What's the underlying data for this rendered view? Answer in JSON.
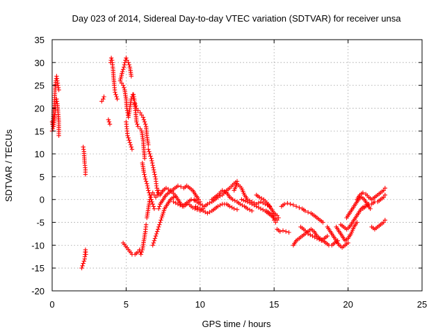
{
  "chart_data": {
    "type": "scatter",
    "title": "Day 023 of 2014, Sidereal Day-to-day VTEC variation (SDTVAR) for receiver unsa",
    "xlabel": "GPS time / hours",
    "ylabel": "SDTVAR / TECUs",
    "xlim": [
      0,
      25
    ],
    "ylim": [
      -20,
      35
    ],
    "xticks": [
      0,
      5,
      10,
      15,
      20,
      25
    ],
    "yticks": [
      -20,
      -15,
      -10,
      -5,
      0,
      5,
      10,
      15,
      20,
      25,
      30,
      35
    ],
    "grid": true,
    "marker": "+",
    "color": "#ff0000",
    "segments": [
      [
        [
          0,
          17
        ],
        [
          0.05,
          16
        ],
        [
          0.1,
          19
        ],
        [
          0.15,
          21
        ],
        [
          0.2,
          24
        ],
        [
          0.25,
          26
        ],
        [
          0.3,
          27
        ],
        [
          0.35,
          26
        ],
        [
          0.4,
          25
        ],
        [
          0.45,
          24
        ]
      ],
      [
        [
          0,
          15
        ],
        [
          0.1,
          16
        ],
        [
          0.15,
          18
        ],
        [
          0.2,
          19
        ],
        [
          0.25,
          21
        ],
        [
          0.3,
          22
        ],
        [
          0.35,
          21
        ],
        [
          0.4,
          19
        ],
        [
          0.45,
          17
        ],
        [
          0.45,
          14
        ]
      ],
      [
        [
          2.1,
          11.5
        ],
        [
          2.15,
          10.5
        ],
        [
          2.2,
          8
        ],
        [
          2.25,
          6.5
        ],
        [
          2.25,
          5.5
        ]
      ],
      [
        [
          2,
          -15
        ],
        [
          2.05,
          -14.5
        ],
        [
          2.1,
          -14
        ],
        [
          2.15,
          -13.5
        ],
        [
          2.2,
          -13
        ],
        [
          2.22,
          -12
        ],
        [
          2.25,
          -11
        ],
        [
          2.28,
          -12
        ]
      ],
      [
        [
          3.35,
          21.5
        ],
        [
          3.45,
          22
        ],
        [
          3.5,
          22.5
        ]
      ],
      [
        [
          3.8,
          17.5
        ],
        [
          3.85,
          17
        ],
        [
          3.9,
          16.5
        ]
      ],
      [
        [
          3.95,
          30
        ],
        [
          4.0,
          31
        ],
        [
          4.05,
          30.5
        ],
        [
          4.1,
          29
        ],
        [
          4.15,
          27
        ],
        [
          4.2,
          25
        ],
        [
          4.25,
          23.5
        ],
        [
          4.3,
          23
        ],
        [
          4.4,
          22
        ]
      ],
      [
        [
          4.6,
          26
        ],
        [
          4.75,
          28
        ],
        [
          4.85,
          29
        ],
        [
          4.95,
          30.5
        ],
        [
          5.0,
          31
        ],
        [
          5.05,
          30.5
        ],
        [
          5.15,
          30
        ],
        [
          5.25,
          29
        ],
        [
          5.35,
          27
        ]
      ],
      [
        [
          4.7,
          25.5
        ],
        [
          4.8,
          25
        ],
        [
          4.9,
          24
        ],
        [
          5.0,
          22
        ],
        [
          5.05,
          20
        ],
        [
          5.1,
          19
        ],
        [
          5.15,
          18
        ],
        [
          5.25,
          20
        ],
        [
          5.35,
          22
        ],
        [
          5.45,
          23
        ],
        [
          5.5,
          22
        ]
      ],
      [
        [
          5.5,
          23
        ],
        [
          5.55,
          22
        ],
        [
          5.6,
          20
        ],
        [
          5.65,
          19
        ],
        [
          5.7,
          17
        ],
        [
          5.8,
          16
        ],
        [
          5.95,
          15.5
        ],
        [
          6.05,
          15
        ],
        [
          6.15,
          13
        ],
        [
          6.2,
          11
        ],
        [
          6.25,
          9
        ]
      ],
      [
        [
          5.6,
          21
        ],
        [
          5.7,
          20
        ],
        [
          5.8,
          19.5
        ],
        [
          5.95,
          19
        ],
        [
          6.05,
          18.5
        ],
        [
          6.15,
          18
        ],
        [
          6.25,
          17
        ],
        [
          6.35,
          16
        ],
        [
          6.4,
          14
        ],
        [
          6.5,
          12
        ]
      ],
      [
        [
          5.0,
          17
        ],
        [
          5.05,
          15.5
        ],
        [
          5.1,
          14
        ],
        [
          5.2,
          13
        ],
        [
          5.3,
          12
        ],
        [
          5.4,
          11
        ]
      ],
      [
        [
          6.5,
          11
        ],
        [
          6.6,
          10
        ],
        [
          6.7,
          9
        ],
        [
          6.8,
          7.5
        ],
        [
          6.9,
          6
        ],
        [
          7.0,
          4.5
        ],
        [
          7.05,
          3
        ],
        [
          7.1,
          2
        ],
        [
          7.15,
          1.5
        ],
        [
          7.2,
          1
        ]
      ],
      [
        [
          6.1,
          8
        ],
        [
          6.2,
          6
        ],
        [
          6.3,
          4.5
        ],
        [
          6.4,
          3.5
        ],
        [
          6.5,
          2
        ],
        [
          6.6,
          1
        ],
        [
          6.7,
          0
        ],
        [
          6.8,
          -1
        ],
        [
          6.9,
          -2
        ]
      ],
      [
        [
          4.8,
          -9.5
        ],
        [
          5.4,
          -12
        ],
        [
          5.6,
          -12
        ],
        [
          5.8,
          -11.5
        ],
        [
          5.9,
          -11
        ],
        [
          6.0,
          -12
        ],
        [
          6.1,
          -11
        ],
        [
          6.2,
          -9
        ],
        [
          6.3,
          -7
        ],
        [
          6.35,
          -5.5
        ]
      ],
      [
        [
          6.4,
          -4
        ],
        [
          6.5,
          -2
        ],
        [
          6.6,
          0
        ],
        [
          6.7,
          1
        ],
        [
          6.8,
          1.5
        ],
        [
          6.9,
          1
        ],
        [
          7.0,
          0.5
        ],
        [
          7.1,
          1
        ],
        [
          7.2,
          2
        ]
      ],
      [
        [
          6.8,
          -10
        ],
        [
          6.9,
          -9
        ],
        [
          7.0,
          -8
        ],
        [
          7.1,
          -7
        ],
        [
          7.2,
          -6
        ],
        [
          7.3,
          -5
        ],
        [
          7.4,
          -4
        ],
        [
          7.6,
          -2
        ],
        [
          7.8,
          -1
        ],
        [
          8.0,
          0
        ],
        [
          8.2,
          0.5
        ]
      ],
      [
        [
          7.2,
          -2
        ],
        [
          7.3,
          -1
        ],
        [
          7.5,
          0
        ],
        [
          7.7,
          1
        ],
        [
          7.9,
          1.5
        ],
        [
          8.1,
          2
        ],
        [
          8.3,
          2.5
        ],
        [
          8.5,
          3
        ],
        [
          8.7,
          2.8
        ],
        [
          8.9,
          2.5
        ],
        [
          9.1,
          3
        ],
        [
          9.3,
          2.5
        ],
        [
          9.5,
          2
        ],
        [
          9.7,
          1
        ],
        [
          9.9,
          0
        ]
      ],
      [
        [
          7.3,
          1
        ],
        [
          7.5,
          2
        ],
        [
          7.7,
          2.5
        ],
        [
          8.0,
          2
        ],
        [
          8.3,
          1
        ],
        [
          8.5,
          0
        ],
        [
          8.7,
          -1
        ],
        [
          8.9,
          -1.5
        ],
        [
          9.1,
          -1
        ],
        [
          9.3,
          -1.2
        ],
        [
          9.5,
          -1.8
        ],
        [
          9.8,
          -2.2
        ],
        [
          10.0,
          -2.5
        ],
        [
          10.2,
          -2
        ]
      ],
      [
        [
          8.2,
          -0.5
        ],
        [
          8.5,
          -1
        ],
        [
          8.8,
          -1.5
        ],
        [
          9.0,
          -1
        ],
        [
          9.2,
          -0.5
        ],
        [
          9.4,
          0
        ],
        [
          9.6,
          -0.2
        ],
        [
          9.8,
          -0.5
        ],
        [
          10.0,
          -0.5
        ]
      ],
      [
        [
          9.6,
          0
        ],
        [
          9.8,
          -0.5
        ],
        [
          10.0,
          -1
        ],
        [
          10.3,
          -1.5
        ],
        [
          10.5,
          -1
        ],
        [
          10.8,
          -0.5
        ],
        [
          11.0,
          0
        ],
        [
          11.2,
          0.5
        ],
        [
          11.5,
          1
        ],
        [
          11.8,
          2
        ],
        [
          12.0,
          2.5
        ],
        [
          12.3,
          3.5
        ],
        [
          12.5,
          4
        ]
      ],
      [
        [
          9.7,
          -1.5
        ],
        [
          10.0,
          -2
        ],
        [
          10.2,
          -2.5
        ],
        [
          10.5,
          -3
        ],
        [
          10.8,
          -2.5
        ],
        [
          11.0,
          -2
        ],
        [
          11.2,
          -1.5
        ],
        [
          11.5,
          -1
        ],
        [
          11.8,
          -1
        ],
        [
          12.0,
          -1.5
        ],
        [
          12.3,
          -2
        ],
        [
          12.5,
          -2.2
        ]
      ],
      [
        [
          10.8,
          0
        ],
        [
          11.2,
          1
        ],
        [
          11.5,
          2
        ],
        [
          11.8,
          1.5
        ],
        [
          12.0,
          0.5
        ],
        [
          12.2,
          0
        ],
        [
          12.5,
          -0.5
        ],
        [
          12.7,
          -1
        ],
        [
          13.0,
          -1.5
        ],
        [
          13.2,
          -2
        ],
        [
          13.5,
          -2.5
        ]
      ],
      [
        [
          12.3,
          2
        ],
        [
          12.5,
          3.5
        ],
        [
          12.8,
          2.5
        ],
        [
          13.0,
          1
        ],
        [
          13.2,
          0
        ],
        [
          13.5,
          -0.5
        ],
        [
          13.8,
          -1
        ],
        [
          14.1,
          -0.5
        ],
        [
          14.4,
          -1
        ],
        [
          14.7,
          -1.5
        ]
      ],
      [
        [
          12.8,
          0
        ],
        [
          13.2,
          -0.5
        ],
        [
          13.5,
          -1
        ],
        [
          13.8,
          -1.5
        ],
        [
          14.1,
          -2
        ],
        [
          14.4,
          -2.5
        ],
        [
          14.6,
          -3
        ],
        [
          14.8,
          -3.5
        ],
        [
          15.0,
          -4
        ],
        [
          15.2,
          -4.5
        ]
      ],
      [
        [
          13.8,
          1
        ],
        [
          14.0,
          0.5
        ],
        [
          14.3,
          0
        ],
        [
          14.6,
          -1
        ],
        [
          14.8,
          -2
        ],
        [
          15.0,
          -3
        ],
        [
          15.2,
          -3.5
        ],
        [
          15.3,
          -4
        ]
      ],
      [
        [
          14.5,
          -2.5
        ],
        [
          14.7,
          -3
        ],
        [
          14.9,
          -3.5
        ],
        [
          15.0,
          -4.5
        ],
        [
          15.1,
          -5
        ]
      ],
      [
        [
          15.2,
          -6.5
        ],
        [
          15.4,
          -7
        ],
        [
          15.6,
          -6.8
        ],
        [
          15.8,
          -7
        ],
        [
          16.0,
          -7.2
        ]
      ],
      [
        [
          15.5,
          -1.5
        ],
        [
          15.7,
          -1
        ],
        [
          15.9,
          -0.8
        ],
        [
          16.1,
          -1
        ],
        [
          16.3,
          -1.2
        ],
        [
          16.5,
          -1.5
        ],
        [
          16.7,
          -1.8
        ],
        [
          16.9,
          -2
        ],
        [
          17.1,
          -2.5
        ],
        [
          17.3,
          -2.8
        ],
        [
          17.5,
          -3
        ],
        [
          17.7,
          -3.5
        ],
        [
          17.9,
          -4
        ],
        [
          18.1,
          -4.5
        ],
        [
          18.3,
          -5
        ]
      ],
      [
        [
          16.3,
          -10
        ],
        [
          16.5,
          -9
        ],
        [
          16.7,
          -8.5
        ],
        [
          16.9,
          -8
        ],
        [
          17.1,
          -7.5
        ],
        [
          17.3,
          -7
        ],
        [
          17.5,
          -6.5
        ],
        [
          17.7,
          -7
        ],
        [
          17.9,
          -8
        ],
        [
          18.1,
          -8.5
        ],
        [
          18.3,
          -9
        ],
        [
          18.5,
          -9.5
        ],
        [
          18.7,
          -10
        ],
        [
          18.9,
          -10
        ],
        [
          19.1,
          -9.5
        ],
        [
          19.3,
          -9
        ]
      ],
      [
        [
          16.8,
          -6
        ],
        [
          17.0,
          -6.5
        ],
        [
          17.3,
          -7.5
        ],
        [
          17.6,
          -8
        ],
        [
          17.9,
          -8.5
        ],
        [
          18.2,
          -9
        ],
        [
          18.4,
          -8.5
        ],
        [
          18.6,
          -8
        ]
      ],
      [
        [
          18.6,
          -6
        ],
        [
          18.8,
          -7
        ],
        [
          19.0,
          -8
        ],
        [
          19.2,
          -9
        ],
        [
          19.4,
          -10
        ],
        [
          19.6,
          -10.5
        ],
        [
          19.8,
          -10
        ],
        [
          20.0,
          -9.5
        ]
      ],
      [
        [
          19.2,
          -6
        ],
        [
          19.4,
          -7
        ],
        [
          19.6,
          -8
        ],
        [
          19.8,
          -9
        ],
        [
          20.0,
          -8.5
        ],
        [
          20.2,
          -7.5
        ],
        [
          20.4,
          -6
        ],
        [
          20.6,
          -5
        ]
      ],
      [
        [
          19.5,
          -5.5
        ],
        [
          19.7,
          -6
        ],
        [
          19.9,
          -6.5
        ],
        [
          20.1,
          -6
        ],
        [
          20.3,
          -5
        ],
        [
          20.5,
          -4
        ],
        [
          20.7,
          -3
        ],
        [
          20.9,
          -2
        ],
        [
          21.1,
          -1.5
        ]
      ],
      [
        [
          19.9,
          -4
        ],
        [
          20.1,
          -3
        ],
        [
          20.3,
          -2
        ],
        [
          20.5,
          -1
        ],
        [
          20.7,
          0
        ],
        [
          20.9,
          0.5
        ],
        [
          21.1,
          0
        ],
        [
          21.3,
          -1
        ],
        [
          21.5,
          -2
        ]
      ],
      [
        [
          20.6,
          0
        ],
        [
          20.8,
          1
        ],
        [
          21.0,
          1.5
        ],
        [
          21.2,
          1.2
        ],
        [
          21.4,
          0.5
        ],
        [
          21.6,
          0
        ],
        [
          21.8,
          0.5
        ],
        [
          22.0,
          1
        ],
        [
          22.2,
          1.5
        ],
        [
          22.4,
          2
        ],
        [
          22.5,
          2.5
        ]
      ],
      [
        [
          21.0,
          -2
        ],
        [
          21.2,
          -1.5
        ],
        [
          21.4,
          -1
        ],
        [
          21.6,
          -1
        ],
        [
          21.8,
          -0.5
        ],
        [
          22.0,
          -0.5
        ],
        [
          22.2,
          0
        ],
        [
          22.4,
          0.5
        ],
        [
          22.5,
          1
        ]
      ],
      [
        [
          21.6,
          -6
        ],
        [
          21.8,
          -6.5
        ],
        [
          22.0,
          -6
        ],
        [
          22.2,
          -5.5
        ],
        [
          22.4,
          -5
        ],
        [
          22.5,
          -4.5
        ]
      ]
    ]
  }
}
